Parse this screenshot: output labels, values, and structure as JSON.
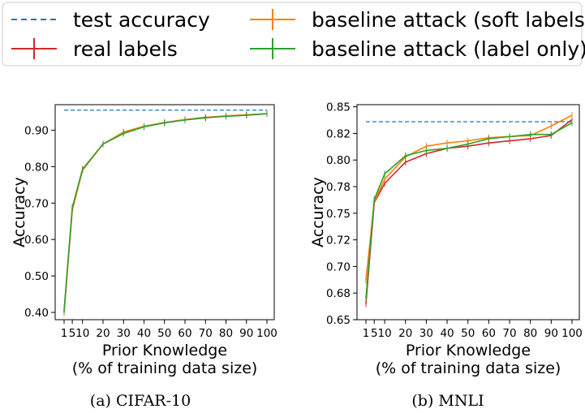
{
  "legend": {
    "placement": "top",
    "entries": [
      {
        "label": "test accuracy",
        "color": "#1f77b4",
        "style": "dashed"
      },
      {
        "label": "real labels",
        "color": "#d62728",
        "style": "solid"
      },
      {
        "label": "baseline attack (soft labels)",
        "color": "#ff7f0e",
        "style": "solid"
      },
      {
        "label": "baseline attack (label only)",
        "color": "#2ca02c",
        "style": "solid"
      }
    ]
  },
  "chart_data": [
    {
      "type": "line",
      "caption": "(a) CIFAR-10",
      "xlabel": "Prior Knowledge",
      "xlabel2": "(% of training data size)",
      "ylabel": "Accuracy",
      "x": [
        1,
        5,
        10,
        20,
        30,
        40,
        50,
        60,
        70,
        80,
        90,
        100
      ],
      "x_ticks": [
        "1",
        "5",
        "10",
        "20",
        "30",
        "40",
        "50",
        "60",
        "70",
        "80",
        "90",
        "100"
      ],
      "y_ticks": [
        "0.40",
        "0.50",
        "0.60",
        "0.70",
        "0.80",
        "0.90"
      ],
      "y_tick_values": [
        0.4,
        0.5,
        0.6,
        0.7,
        0.8,
        0.9
      ],
      "ylim": [
        0.38,
        0.97
      ],
      "grid": false,
      "test_accuracy": 0.955,
      "series": [
        {
          "name": "real labels",
          "color": "#d62728",
          "values": [
            0.4,
            0.685,
            0.792,
            0.862,
            0.893,
            0.91,
            0.921,
            0.929,
            0.935,
            0.939,
            0.942,
            0.945
          ]
        },
        {
          "name": "baseline attack (soft labels)",
          "color": "#ff7f0e",
          "values": [
            0.402,
            0.68,
            0.79,
            0.862,
            0.895,
            0.911,
            0.921,
            0.929,
            0.934,
            0.939,
            0.942,
            0.945
          ]
        },
        {
          "name": "baseline attack (label only)",
          "color": "#2ca02c",
          "values": [
            0.405,
            0.688,
            0.793,
            0.862,
            0.891,
            0.909,
            0.92,
            0.928,
            0.934,
            0.938,
            0.941,
            0.945
          ]
        }
      ]
    },
    {
      "type": "line",
      "caption": "(b) MNLI",
      "xlabel": "Prior Knowledge",
      "xlabel2": "(% of training data size)",
      "ylabel": "Accuracy",
      "x": [
        1,
        5,
        10,
        20,
        30,
        40,
        50,
        60,
        70,
        80,
        90,
        100
      ],
      "x_ticks": [
        "1",
        "5",
        "10",
        "20",
        "30",
        "40",
        "50",
        "60",
        "70",
        "80",
        "90",
        "100"
      ],
      "y_ticks": [
        "0.65",
        "0.68",
        "0.70",
        "0.72",
        "0.75",
        "0.78",
        "0.80",
        "0.82",
        "0.85"
      ],
      "y_tick_values": [
        0.65,
        0.675,
        0.7,
        0.725,
        0.75,
        0.775,
        0.8,
        0.825,
        0.85
      ],
      "ylim": [
        0.65,
        0.852
      ],
      "grid": false,
      "test_accuracy": 0.836,
      "series": [
        {
          "name": "real labels",
          "color": "#d62728",
          "values": [
            0.665,
            0.76,
            0.778,
            0.798,
            0.806,
            0.811,
            0.813,
            0.816,
            0.818,
            0.82,
            0.823,
            0.838
          ]
        },
        {
          "name": "baseline attack (soft labels)",
          "color": "#ff7f0e",
          "values": [
            0.687,
            0.761,
            0.782,
            0.803,
            0.813,
            0.816,
            0.818,
            0.821,
            0.822,
            0.823,
            0.832,
            0.842
          ]
        },
        {
          "name": "baseline attack (label only)",
          "color": "#2ca02c",
          "values": [
            0.67,
            0.763,
            0.787,
            0.804,
            0.809,
            0.811,
            0.815,
            0.82,
            0.822,
            0.824,
            0.824,
            0.835
          ]
        }
      ]
    }
  ]
}
